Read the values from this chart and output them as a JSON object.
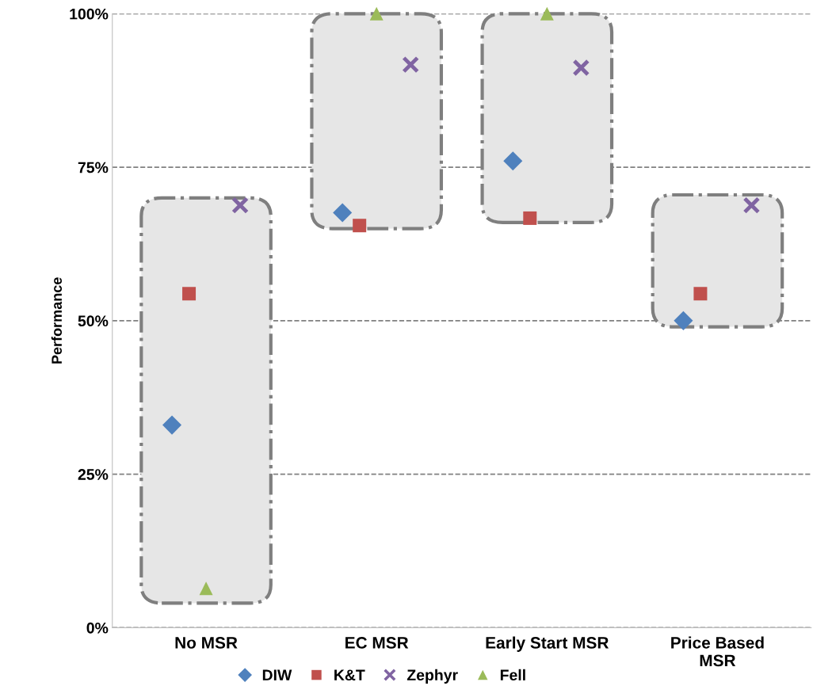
{
  "chart_data": {
    "type": "scatter",
    "ylabel": "Performance",
    "categories": [
      "No MSR",
      "EC MSR",
      "Early Start MSR",
      "Price Based\nMSR"
    ],
    "series": [
      {
        "type": "bar",
        "color": "#e6e6e6",
        "base": [
          4,
          65,
          66,
          49
        ],
        "values": [
          66,
          35,
          34,
          21.5
        ]
      },
      {
        "name": "DIW",
        "color": "#4f81bd",
        "marker": "diamond",
        "values": [
          33,
          67.6,
          76,
          50
        ]
      },
      {
        "name": "K&T",
        "color": "#c0504d",
        "marker": "square",
        "values": [
          54.4,
          65.5,
          66.7,
          54.4
        ]
      },
      {
        "name": "Zephyr",
        "color": "#8064a2",
        "marker": "cross",
        "values": [
          68.8,
          91.7,
          91.2,
          68.8
        ]
      },
      {
        "name": "Fell",
        "color": "#9bbb59",
        "marker": "triangle",
        "values": [
          6.4,
          100,
          100,
          null
        ]
      }
    ],
    "ylim": [
      0,
      100
    ],
    "yticks": [
      {
        "value": 0,
        "label": "0%"
      },
      {
        "value": 25,
        "label": "25%"
      },
      {
        "value": 50,
        "label": "50%"
      },
      {
        "value": 75,
        "label": "75%"
      },
      {
        "value": 100,
        "label": "100%"
      }
    ],
    "grid": "y",
    "legend": "bottom"
  }
}
